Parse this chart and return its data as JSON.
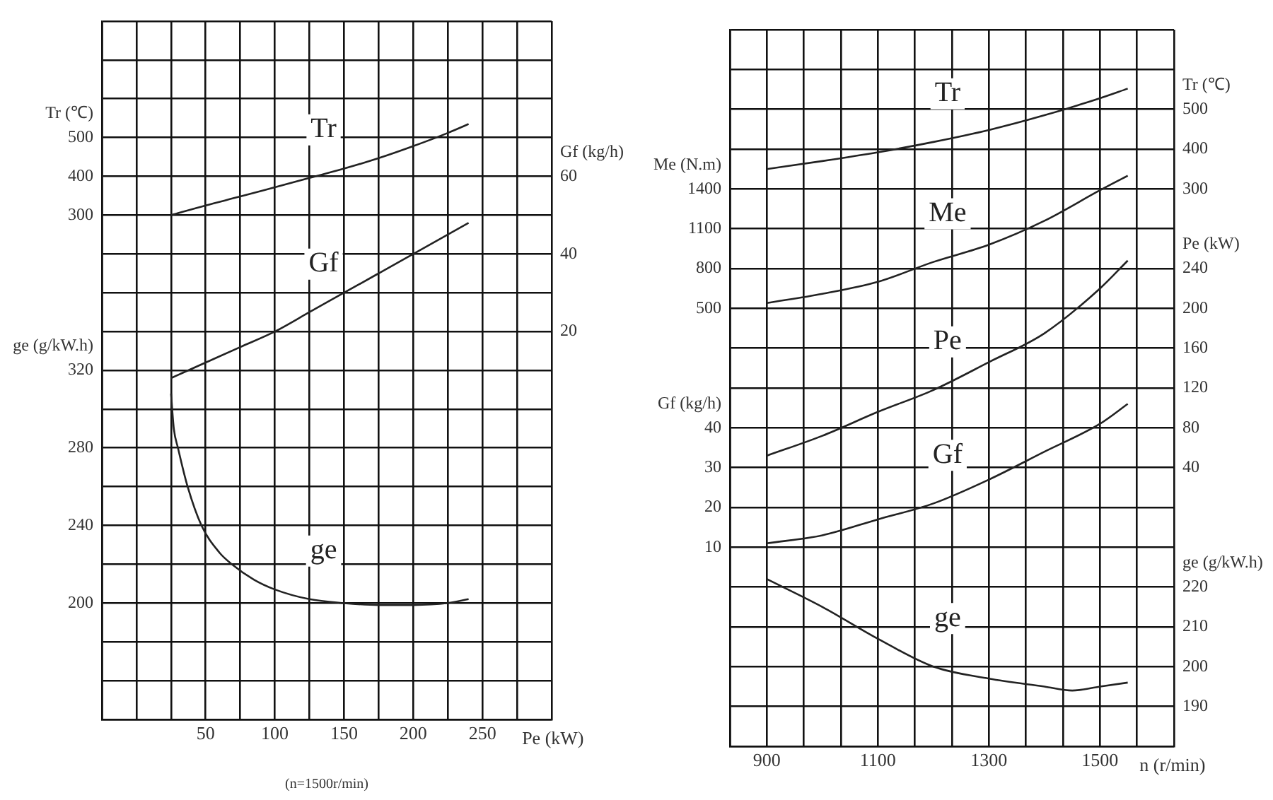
{
  "chart_data": [
    {
      "type": "line",
      "xlabel": "Pe (kW)",
      "ylabel": "Tr (℃)",
      "y2label": "Gf (kg/h)",
      "y3label": "ge (g/kW.h)",
      "annotations": [
        "(n=1500r/min)"
      ],
      "grid": true,
      "marker": "none",
      "xlim": [
        -25,
        300
      ],
      "xticks": [
        {
          "value": -25,
          "label": null
        },
        {
          "value": 0,
          "label": null
        },
        {
          "value": 25,
          "label": null
        },
        50,
        {
          "value": 75,
          "label": null
        },
        100,
        {
          "value": 125,
          "label": null
        },
        150,
        {
          "value": 175,
          "label": null
        },
        200,
        {
          "value": 225,
          "label": null
        },
        250,
        {
          "value": 275,
          "label": null
        },
        {
          "value": 300,
          "label": null
        }
      ],
      "ylim": [
        -1000,
        800
      ],
      "yticks": [
        {
          "value": -1000,
          "label": null
        },
        {
          "value": -900,
          "label": null
        },
        {
          "value": -800,
          "label": null
        },
        {
          "value": -700,
          "label": null
        },
        {
          "value": -600,
          "label": null
        },
        {
          "value": -500,
          "label": null
        },
        {
          "value": -400,
          "label": null
        },
        {
          "value": -300,
          "label": null
        },
        {
          "value": -200,
          "label": null
        },
        {
          "value": -100,
          "label": null
        },
        {
          "value": 0,
          "label": null
        },
        {
          "value": 100,
          "label": null
        },
        {
          "value": 200,
          "label": null
        },
        300,
        400,
        500,
        {
          "value": 600,
          "label": null
        },
        {
          "value": 700,
          "label": null
        },
        {
          "value": 800,
          "label": null
        }
      ],
      "y2lim": [
        -80,
        100
      ],
      "y2ticks": [
        20,
        40,
        60
      ],
      "y3lim": [
        140,
        500
      ],
      "y3ticks": [
        200,
        240,
        280,
        320
      ],
      "series": [
        {
          "name": "Tr",
          "color": "#222222",
          "x": [
            25,
            50,
            75,
            100,
            125,
            150,
            175,
            200,
            225,
            240
          ],
          "values": [
            300,
            325,
            348,
            372,
            396,
            420,
            447,
            478,
            512,
            535
          ]
        },
        {
          "name": "Gf",
          "color": "#222222",
          "axis": "y2",
          "x": [
            25,
            50,
            75,
            100,
            125,
            150,
            175,
            200,
            225,
            240
          ],
          "values": [
            8,
            12,
            16,
            20,
            25,
            30,
            35,
            40,
            45,
            48
          ]
        },
        {
          "name": "ge",
          "color": "#222222",
          "axis": "y3",
          "x": [
            25,
            27,
            30,
            37,
            47,
            60,
            69,
            85,
            100,
            125,
            150,
            175,
            200,
            225,
            240
          ],
          "values": [
            308,
            290,
            280,
            260,
            240,
            226,
            220,
            212,
            207,
            202,
            200,
            199,
            199,
            200,
            202
          ]
        }
      ]
    },
    {
      "type": "line",
      "xlabel": "n (r/min)",
      "ylabel": "Me (N.m)",
      "y2label": "Tr (℃)",
      "y3label": "Gf (kg/h)",
      "grid": true,
      "marker": "none",
      "xlim": [
        833.3,
        1633.3
      ],
      "xticks": [
        {
          "value": 833.3,
          "label": null
        },
        900,
        {
          "value": 966.7,
          "label": null
        },
        {
          "value": 1033.3,
          "label": null
        },
        1100,
        {
          "value": 1166.7,
          "label": null
        },
        {
          "value": 1233.3,
          "label": null
        },
        1300,
        {
          "value": 1366.7,
          "label": null
        },
        {
          "value": 1433.3,
          "label": null
        },
        1500,
        {
          "value": 1566.7,
          "label": null
        },
        {
          "value": 1633.3,
          "label": null
        }
      ],
      "ylim": [
        -2800,
        2600
      ],
      "yticks": [
        {
          "value": -2800,
          "label": null
        },
        {
          "value": -2500,
          "label": null
        },
        {
          "value": -2200,
          "label": null
        },
        {
          "value": -1900,
          "label": null
        },
        {
          "value": -1600,
          "label": null
        },
        {
          "value": -1300,
          "label": null
        },
        {
          "value": -1000,
          "label": null
        },
        {
          "value": -700,
          "label": null
        },
        {
          "value": -400,
          "label": null
        },
        {
          "value": -100,
          "label": null
        },
        {
          "value": 200,
          "label": null
        },
        500,
        800,
        1100,
        1400,
        {
          "value": 1700,
          "label": null
        },
        {
          "value": 2000,
          "label": null
        },
        {
          "value": 2300,
          "label": null
        },
        {
          "value": 2600,
          "label": null
        }
      ],
      "y2lim": [
        -1100,
        700
      ],
      "y2ticks": [
        300,
        400,
        500
      ],
      "y3lim": [
        -40,
        140
      ],
      "y3ticks": [
        10,
        20,
        30,
        40
      ],
      "series": [
        {
          "name": "Tr",
          "color": "#222222",
          "axis": "y2",
          "x": [
            900,
            1000,
            1100,
            1200,
            1300,
            1400,
            1500,
            1550
          ],
          "values": [
            350,
            370,
            392,
            418,
            448,
            485,
            528,
            552
          ]
        },
        {
          "name": "Me",
          "color": "#222222",
          "x": [
            900,
            1000,
            1100,
            1200,
            1300,
            1400,
            1500,
            1550
          ],
          "values": [
            540,
            610,
            700,
            850,
            980,
            1160,
            1390,
            1500
          ]
        },
        {
          "name": "Gf",
          "color": "#222222",
          "axis": "y3",
          "x": [
            900,
            1000,
            1100,
            1200,
            1300,
            1400,
            1500,
            1550
          ],
          "values": [
            11,
            13,
            17,
            21,
            27,
            34,
            41,
            46
          ]
        }
      ]
    },
    {
      "type": "line",
      "y2label": "Pe (kW)",
      "y3label": "ge (g/kW.h)",
      "tick_labels": "y",
      "marker": "none",
      "xlim": [
        833.3,
        1633.3
      ],
      "y2lim": [
        -240,
        480
      ],
      "y2ticks": [
        40,
        80,
        120,
        160,
        200,
        240
      ],
      "y3lim": [
        180,
        360
      ],
      "y3ticks": [
        190,
        200,
        210,
        220
      ],
      "series": [
        {
          "name": "Pe",
          "color": "#222222",
          "axis": "y2",
          "x": [
            900,
            1000,
            1100,
            1200,
            1300,
            1400,
            1500,
            1550
          ],
          "values": [
            52,
            72,
            96,
            118,
            146,
            175,
            220,
            248
          ]
        },
        {
          "name": "ge",
          "color": "#222222",
          "axis": "y3",
          "x": [
            900,
            1000,
            1100,
            1200,
            1300,
            1400,
            1450,
            1500,
            1550
          ],
          "values": [
            222,
            215,
            207,
            200,
            197,
            195,
            194,
            195,
            196
          ]
        }
      ]
    }
  ]
}
